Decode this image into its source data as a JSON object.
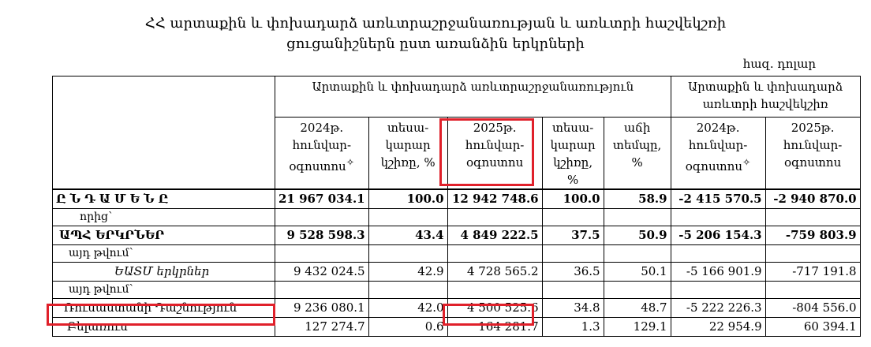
{
  "title": {
    "line1": "ՀՀ արտաքին և փոխադարձ առևտրաշրջանառության և առևտրի հաշվեկշռի",
    "line2": "ցուցանիշներն ըստ առանձին երկրների"
  },
  "unit": "հազ. դոլար",
  "header": {
    "group1": "Արտաքին և փոխադարձ առևտրաշրջանառություն",
    "group2": "Արտաքին և փոխադարձ առևտրի հաշվեկշիռ",
    "col_2024": "2024թ. հունվար-օգոստոս",
    "col_2024_marker": "✧",
    "col_share": "տեսա-կարար կշիռը, %",
    "col_2025": "2025թ. հունվար-օգոստոս",
    "col_growth": "աճի տեմպը, %",
    "bal_2024": "2024թ. հունվար-օգոստոս",
    "bal_2024_marker": "✧",
    "bal_2025": "2025թ. հունվար-օգոստոս"
  },
  "rows": [
    {
      "label": "ԸՆԴԱՄԵՆԸ",
      "v2024": "21 967 034.1",
      "s2024": "100.0",
      "v2025": "12 942 748.6",
      "s2025": "100.0",
      "growth": "58.9",
      "b2024": "-2 415 570.5",
      "b2025": "-2 940 870.0"
    },
    {
      "label": "որից՝"
    },
    {
      "label": "ԱՊՀ ԵՐԿՐՆԵՐ",
      "v2024": "9 528 598.3",
      "s2024": "43.4",
      "v2025": "4 849 222.5",
      "s2025": "37.5",
      "growth": "50.9",
      "b2024": "-5 206 154.3",
      "b2025": "-759 803.9"
    },
    {
      "label": "այդ թվում՝"
    },
    {
      "label": "ԵԱՏՄ երկրներ",
      "v2024": "9 432 024.5",
      "s2024": "42.9",
      "v2025": "4 728 565.2",
      "s2025": "36.5",
      "growth": "50.1",
      "b2024": "-5 166 901.9",
      "b2025": "-717 191.8"
    },
    {
      "label": "այդ թվում՝"
    },
    {
      "label": "Ռուսաստանի Դաշնություն",
      "v2024": "9 236 080.1",
      "s2024": "42.0",
      "v2025": "4 500 525.6",
      "s2025": "34.8",
      "growth": "48.7",
      "b2024": "-5 222 226.3",
      "b2025": "-804 556.0"
    },
    {
      "label": "Բելառուս",
      "v2024": "127 274.7",
      "s2024": "0.6",
      "v2025": "164 281.7",
      "s2025": "1.3",
      "growth": "129.1",
      "b2024": "22 954.9",
      "b2025": "60 394.1"
    }
  ],
  "colors": {
    "highlight": "#e0202a"
  }
}
